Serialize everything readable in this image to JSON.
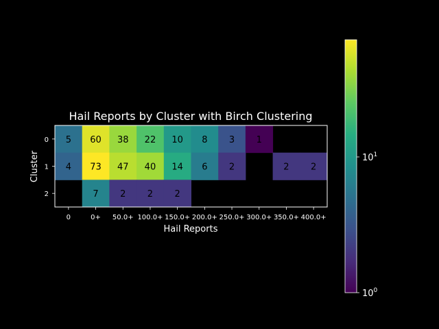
{
  "chart_data": {
    "type": "heatmap",
    "title": "Hail Reports by Cluster with Birch Clustering",
    "xlabel": "Hail Reports",
    "ylabel": "Cluster",
    "x_categories": [
      "0",
      "0+",
      "50.0+",
      "100.0+",
      "150.0+",
      "200.0+",
      "250.0+",
      "300.0+",
      "350.0+",
      "400.0+"
    ],
    "y_categories": [
      "0",
      "1",
      "2"
    ],
    "values": [
      [
        5,
        60,
        38,
        22,
        10,
        8,
        3,
        1,
        null,
        null
      ],
      [
        4,
        73,
        47,
        40,
        14,
        6,
        2,
        null,
        2,
        2
      ],
      [
        null,
        7,
        2,
        2,
        2,
        null,
        null,
        null,
        null,
        null
      ]
    ],
    "colorscale": "viridis",
    "color_scale_type": "log",
    "colorbar": {
      "range": [
        1,
        73
      ],
      "tick_labels": [
        {
          "base": "10",
          "exp": "0",
          "value": 1
        },
        {
          "base": "10",
          "exp": "1",
          "value": 10
        }
      ]
    },
    "background": "#000000",
    "text_color": "#ffffff",
    "cell_label_color": "#000000"
  }
}
